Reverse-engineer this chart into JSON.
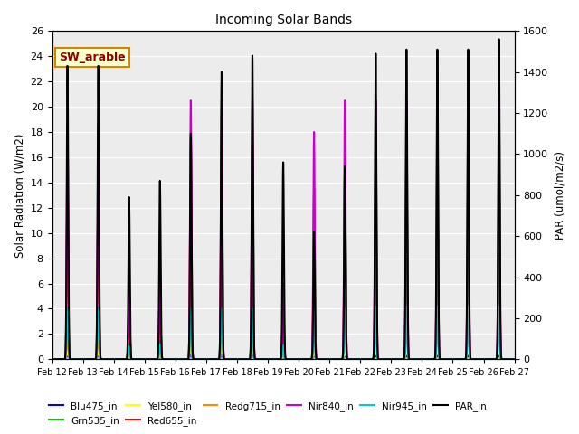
{
  "title": "Incoming Solar Bands",
  "ylabel_left": "Solar Radiation (W/m2)",
  "ylabel_right": "PAR (umol/m2/s)",
  "ylim_left": [
    0,
    26
  ],
  "ylim_right": [
    0,
    1600
  ],
  "annotation_text": "SW_arable",
  "annotation_color": "#8b0000",
  "annotation_bg": "#ffffcc",
  "annotation_border": "#cc8800",
  "series": [
    {
      "name": "Blu475_in",
      "color": "#0000ff",
      "scale": "left",
      "lw": 1.0
    },
    {
      "name": "Grn535_in",
      "color": "#00cc00",
      "scale": "left",
      "lw": 1.0
    },
    {
      "name": "Yel580_in",
      "color": "#ffff00",
      "scale": "left",
      "lw": 1.0
    },
    {
      "name": "Red655_in",
      "color": "#ff0000",
      "scale": "left",
      "lw": 1.5
    },
    {
      "name": "Redg715_in",
      "color": "#ff8800",
      "scale": "left",
      "lw": 1.0
    },
    {
      "name": "Nir840_in",
      "color": "#cc00cc",
      "scale": "left",
      "lw": 1.5
    },
    {
      "name": "Nir945_in",
      "color": "#00cccc",
      "scale": "left",
      "lw": 1.5
    },
    {
      "name": "PAR_in",
      "color": "#000000",
      "scale": "right",
      "lw": 1.5
    }
  ],
  "days": [
    12,
    13,
    14,
    15,
    16,
    17,
    18,
    19,
    20,
    21,
    22,
    23,
    24,
    25,
    26
  ],
  "day_peaks_left": {
    "Blu475_in": [
      0.3,
      0.3,
      0.07,
      0.08,
      0.4,
      0.38,
      0.42,
      0.1,
      0.3,
      0.28,
      0.3,
      0.3,
      0.3,
      0.3,
      0.3
    ],
    "Grn535_in": [
      4.0,
      4.0,
      1.2,
      1.5,
      7.5,
      7.5,
      7.5,
      1.7,
      4.5,
      4.8,
      6.5,
      6.5,
      6.5,
      6.5,
      6.5
    ],
    "Yel580_in": [
      0.5,
      0.5,
      0.15,
      0.18,
      0.9,
      0.9,
      0.9,
      0.18,
      0.5,
      0.5,
      0.7,
      0.7,
      0.7,
      0.7,
      0.7
    ],
    "Red655_in": [
      14.5,
      14.5,
      4.2,
      5.0,
      17.5,
      17.5,
      17.5,
      4.8,
      13.5,
      16.0,
      16.0,
      16.0,
      16.0,
      16.0,
      16.0
    ],
    "Redg715_in": [
      1.4,
      1.4,
      0.45,
      0.5,
      1.9,
      1.9,
      1.9,
      0.45,
      1.4,
      1.9,
      1.9,
      1.9,
      1.9,
      1.9,
      1.9
    ],
    "Nir840_in": [
      18.5,
      18.5,
      5.5,
      7.0,
      20.5,
      20.5,
      20.5,
      6.0,
      18.0,
      20.5,
      20.5,
      20.5,
      20.5,
      20.5,
      20.5
    ],
    "Nir945_in": [
      4.0,
      4.0,
      1.0,
      1.2,
      4.0,
      4.0,
      4.0,
      1.1,
      4.0,
      4.0,
      4.2,
      4.2,
      4.2,
      4.2,
      4.2
    ]
  },
  "day_peaks_right": {
    "PAR_in": [
      1430,
      1430,
      790,
      870,
      1100,
      1400,
      1480,
      960,
      620,
      940,
      1490,
      1510,
      1510,
      1510,
      1560
    ]
  },
  "peak_sigma_hours": 0.55,
  "noon_hour": 12.0,
  "n_days": 15,
  "x_tick_labels": [
    "Feb 12",
    "Feb 13",
    "Feb 14",
    "Feb 15",
    "Feb 16",
    "Feb 17",
    "Feb 18",
    "Feb 19",
    "Feb 20",
    "Feb 21",
    "Feb 22",
    "Feb 23",
    "Feb 24",
    "Feb 25",
    "Feb 26",
    "Feb 27"
  ]
}
